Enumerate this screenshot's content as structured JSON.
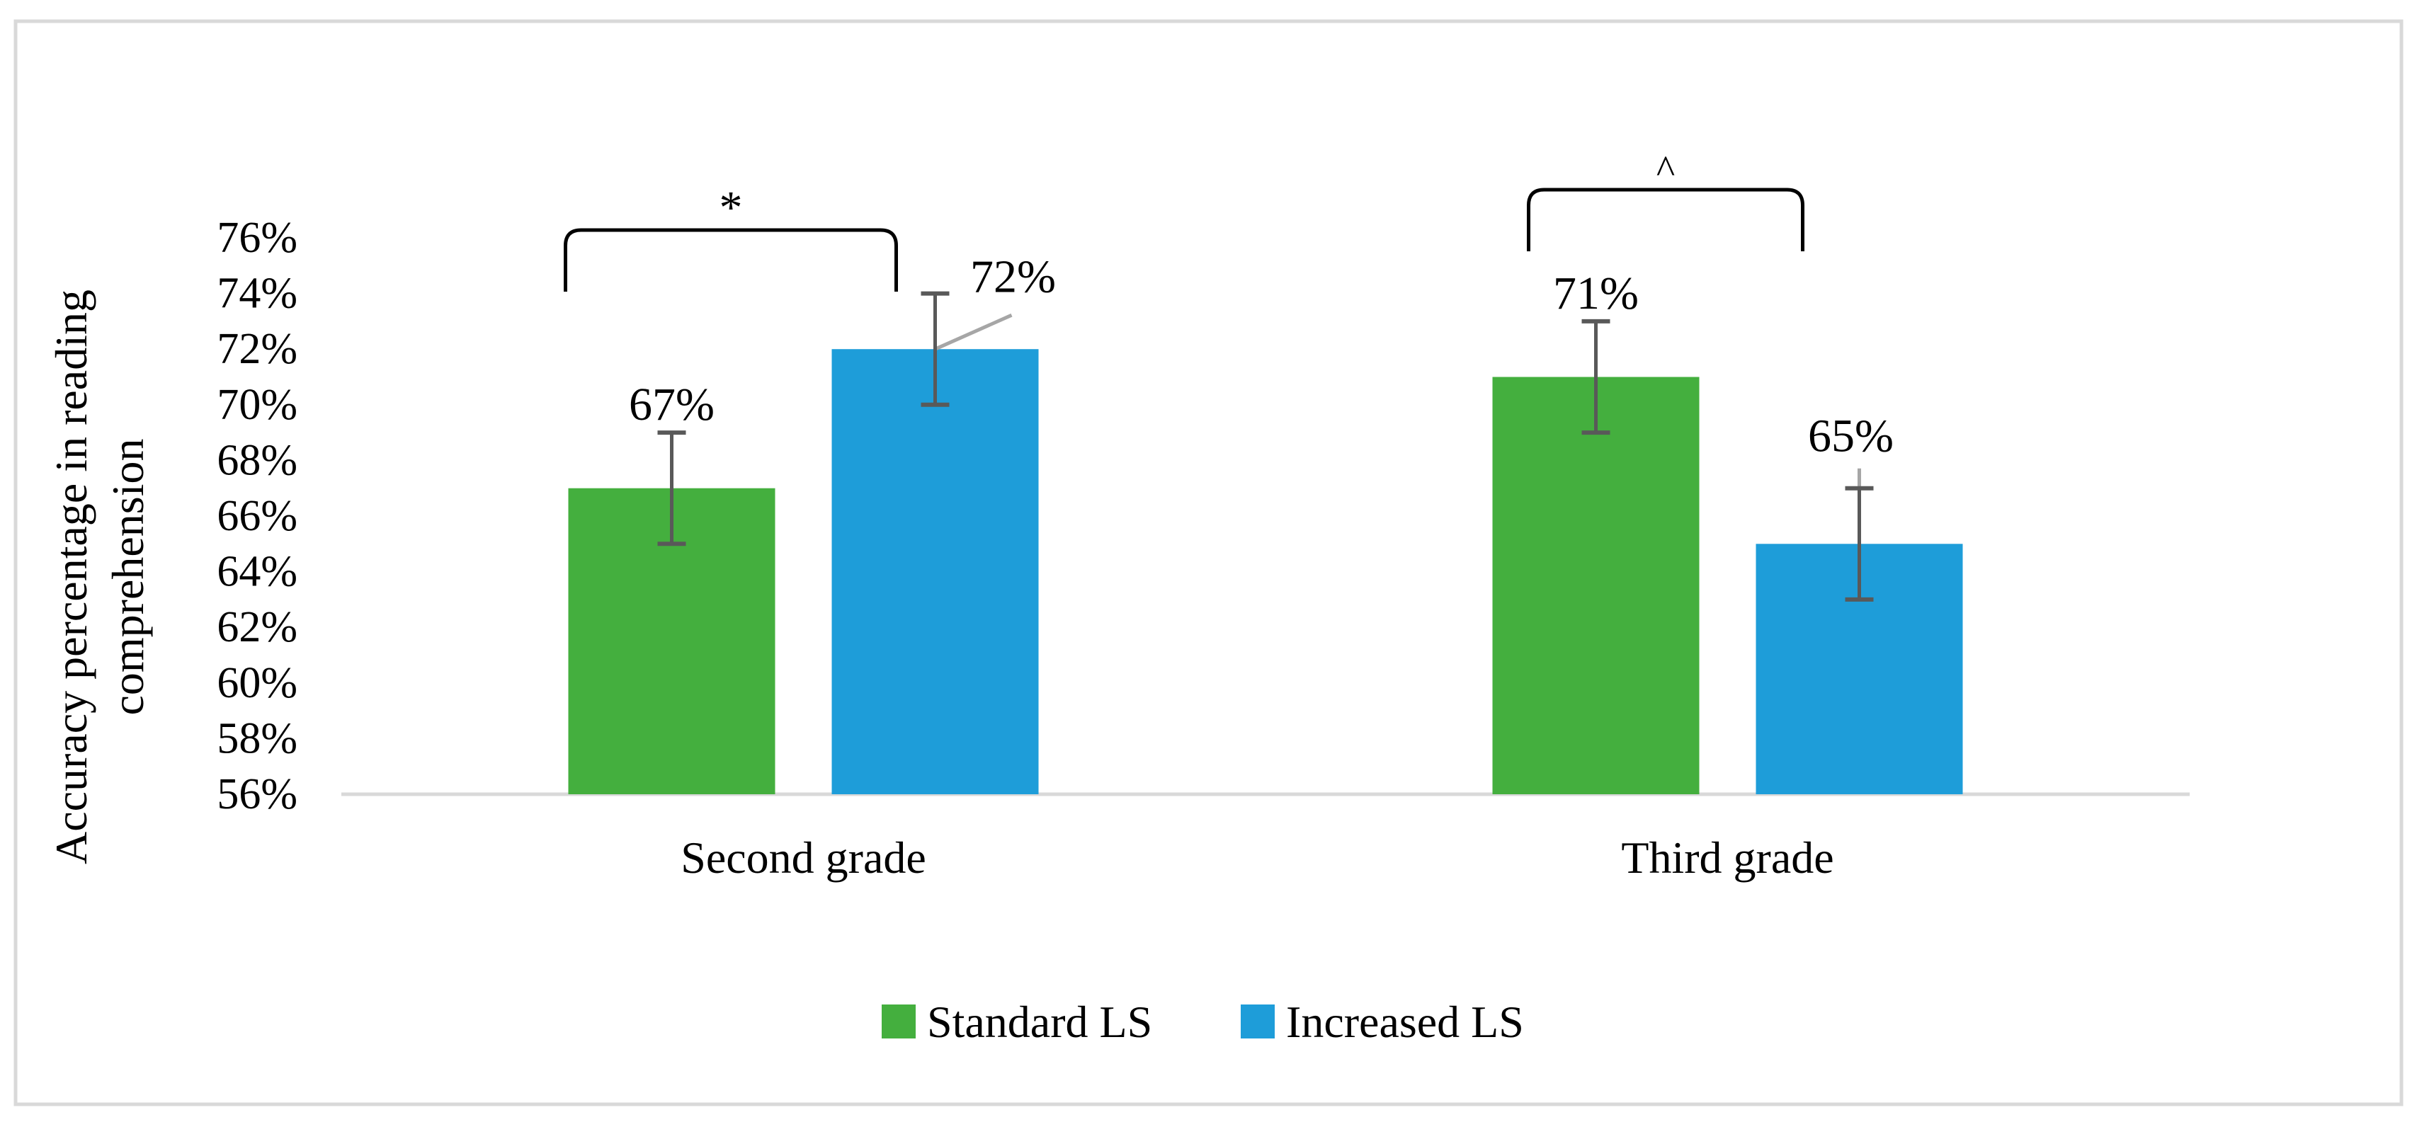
{
  "chart_data": {
    "type": "bar",
    "title": "",
    "xlabel": "",
    "ylabel": "Accuracy percentage in reading comprehension",
    "ylabel_lines": [
      "Accuracy percentage in reading",
      "comprehension"
    ],
    "categories": [
      "Second grade",
      "Third grade"
    ],
    "ylim": [
      56,
      76
    ],
    "y_ticks": [
      56,
      58,
      60,
      62,
      64,
      66,
      68,
      70,
      72,
      74,
      76
    ],
    "y_tick_labels": [
      "56%",
      "58%",
      "60%",
      "62%",
      "64%",
      "66%",
      "68%",
      "70%",
      "72%",
      "74%",
      "76%"
    ],
    "grid": false,
    "legend_position": "bottom",
    "series": [
      {
        "name": "Standard LS",
        "color": "#44AF3E",
        "values": [
          67,
          71
        ],
        "errors": [
          2,
          2
        ],
        "data_labels": [
          "67%",
          "71%"
        ]
      },
      {
        "name": "Increased LS",
        "color": "#1E9DD9",
        "values": [
          72,
          65
        ],
        "errors": [
          2,
          2
        ],
        "data_labels": [
          "72%",
          "65%"
        ]
      }
    ],
    "annotations": [
      {
        "category": "Second grade",
        "symbol": "*",
        "meaning": "significance bracket between series"
      },
      {
        "category": "Third grade",
        "symbol": "^",
        "meaning": "significance bracket between series"
      }
    ],
    "colors": {
      "axis": "#D9D9D9",
      "error_bar": "#595959",
      "leader_line": "#A6A6A6",
      "frame": "#D9D9D9",
      "bracket": "#000000"
    }
  }
}
